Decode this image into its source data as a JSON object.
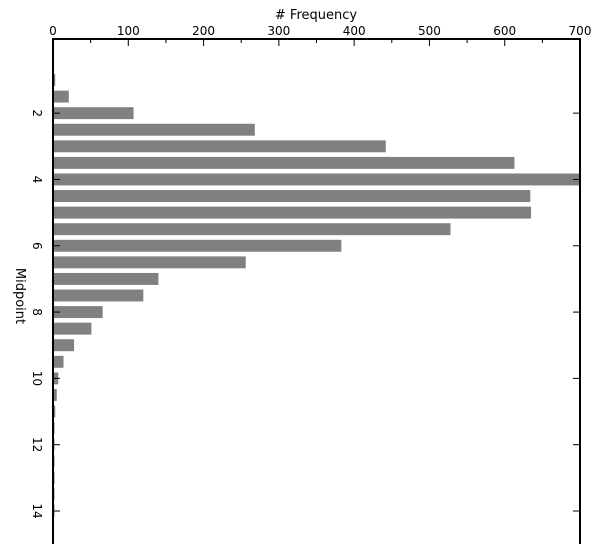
{
  "chart_data": {
    "type": "bar",
    "orientation": "horizontal",
    "title": "",
    "xlabel": "# Frequency",
    "ylabel": "Midpoint",
    "xlim": [
      0,
      700
    ],
    "ylim": [
      0.75,
      16.25
    ],
    "x_ticks": [
      0,
      100,
      200,
      300,
      400,
      500,
      600,
      700
    ],
    "y_ticks": [
      2,
      4,
      6,
      8,
      10,
      12,
      14
    ],
    "bar_color": "#808080",
    "grid": false,
    "legend": "none",
    "categories": [
      1.0,
      1.5,
      2.0,
      2.5,
      3.0,
      3.5,
      4.0,
      4.5,
      5.0,
      5.5,
      6.0,
      6.5,
      7.0,
      7.5,
      8.0,
      8.5,
      9.0,
      9.5,
      10.0,
      10.5,
      11.0,
      11.5,
      12.0,
      12.5,
      13.0,
      13.5,
      14.0
    ],
    "values": [
      3,
      21,
      107,
      268,
      442,
      613,
      700,
      634,
      635,
      528,
      383,
      256,
      140,
      120,
      66,
      51,
      28,
      14,
      7,
      5,
      3,
      2,
      2,
      2,
      2,
      2,
      2
    ]
  }
}
